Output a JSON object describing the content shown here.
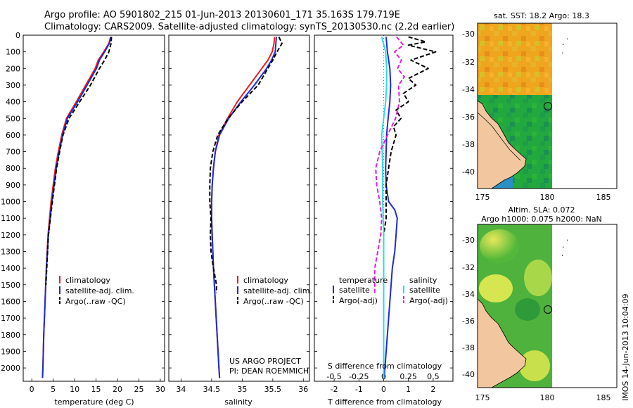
{
  "header": {
    "line1": "Argo profile: AO 5901802_215 01-Jun-2013 20130601_171 35.163S 179.719E",
    "line2": "Climatology: CARS2009. Satellite-adjusted climatology: synTS_20130530.nc (2.2d earlier)"
  },
  "colors": {
    "climatology": "#e8211d",
    "satellite": "#1e2bd6",
    "argo": "#000000",
    "sal_satellite": "#2fd9e6",
    "sal_argo": "#e020e0"
  },
  "depth_ticks": [
    "0",
    "100",
    "200",
    "300",
    "400",
    "500",
    "600",
    "700",
    "800",
    "900",
    "1000",
    "1100",
    "1200",
    "1300",
    "1400",
    "1500",
    "1600",
    "1700",
    "1800",
    "1900",
    "2000"
  ],
  "chart_data": [
    {
      "type": "line",
      "xlabel": "temperature (deg C)",
      "xticks": [
        "0",
        "5",
        "10",
        "15",
        "20",
        "25",
        "30"
      ],
      "xlim": [
        -2,
        31
      ],
      "ylim": [
        2080,
        0
      ],
      "legend": [
        "climatology",
        "satellite-adj. clim.",
        "Argo(..raw -QC)"
      ],
      "series": [
        {
          "name": "climatology",
          "color": "#e8211d",
          "depth": [
            10,
            50,
            100,
            150,
            200,
            300,
            400,
            500,
            600,
            700,
            800,
            1000,
            1200,
            1400,
            1600,
            1800,
            2000,
            2060
          ],
          "values": [
            18.4,
            18.0,
            16.8,
            15.5,
            14.8,
            12.6,
            10.4,
            8.1,
            7.0,
            6.2,
            5.5,
            4.5,
            3.8,
            3.4,
            3.1,
            2.8,
            2.6,
            2.5
          ]
        },
        {
          "name": "satellite-adj. clim.",
          "color": "#1e2bd6",
          "depth": [
            10,
            50,
            100,
            150,
            200,
            300,
            400,
            500,
            600,
            700,
            800,
            1000,
            1200,
            1400,
            1600,
            1800,
            2000,
            2060
          ],
          "values": [
            18.5,
            18.1,
            17.0,
            15.8,
            15.1,
            12.9,
            10.7,
            8.3,
            7.2,
            6.4,
            5.7,
            4.7,
            3.9,
            3.4,
            3.1,
            2.8,
            2.6,
            2.5
          ]
        },
        {
          "name": "Argo(..raw -QC)",
          "color": "#000000",
          "depth": [
            10,
            50,
            100,
            150,
            200,
            300,
            400,
            500,
            600,
            700,
            800,
            1000,
            1200,
            1400,
            1500
          ],
          "values": [
            18.6,
            18.5,
            18.0,
            17.0,
            15.8,
            13.7,
            11.2,
            8.7,
            7.3,
            6.5,
            5.8,
            4.8,
            3.9,
            3.5,
            3.3
          ]
        }
      ]
    },
    {
      "type": "line",
      "xlabel": "salinity",
      "xticks": [
        "34",
        "34.5",
        "35",
        "35.5",
        "36"
      ],
      "xlim": [
        33.8,
        36.1
      ],
      "ylim": [
        2080,
        0
      ],
      "legend": [
        "climatology",
        "satellite-adj. clim.",
        "Argo(..raw -QC)"
      ],
      "series": [
        {
          "name": "climatology",
          "color": "#e8211d",
          "depth": [
            10,
            50,
            100,
            150,
            200,
            300,
            400,
            500,
            600,
            700,
            800,
            900,
            1000,
            1100,
            1200,
            1400,
            1600,
            1800,
            2000,
            2060
          ],
          "values": [
            35.53,
            35.52,
            35.49,
            35.42,
            35.32,
            35.12,
            34.92,
            34.76,
            34.62,
            34.56,
            34.53,
            34.51,
            34.5,
            34.5,
            34.51,
            34.53,
            34.56,
            34.59,
            34.62,
            34.63
          ]
        },
        {
          "name": "satellite-adj. clim.",
          "color": "#1e2bd6",
          "depth": [
            10,
            50,
            100,
            150,
            200,
            300,
            400,
            500,
            600,
            700,
            800,
            900,
            1000,
            1100,
            1200,
            1400,
            1600,
            1800,
            2000,
            2060
          ],
          "values": [
            35.56,
            35.55,
            35.54,
            35.48,
            35.4,
            35.2,
            34.98,
            34.78,
            34.63,
            34.56,
            34.53,
            34.51,
            34.5,
            34.5,
            34.51,
            34.53,
            34.56,
            34.59,
            34.62,
            34.63
          ]
        },
        {
          "name": "Argo(..raw -QC)",
          "color": "#000000",
          "depth": [
            10,
            50,
            100,
            150,
            200,
            300,
            400,
            500,
            600,
            700,
            800,
            900,
            1000,
            1100,
            1200,
            1300,
            1400,
            1500,
            1550
          ],
          "values": [
            35.6,
            35.65,
            35.57,
            35.5,
            35.42,
            35.26,
            35.0,
            34.77,
            34.6,
            34.52,
            34.48,
            34.47,
            34.47,
            34.49,
            34.48,
            34.49,
            34.53,
            34.58,
            34.58
          ]
        }
      ]
    },
    {
      "type": "line",
      "xlabel": "T difference from climatology",
      "xlabel2": "S difference from climatology",
      "xticks": [
        "-2",
        "-1",
        "0",
        "1",
        "2"
      ],
      "xticks2": [
        "-0.5",
        "-0.25",
        "0",
        "0.25",
        "0.5"
      ],
      "xlim": [
        -2.8,
        2.8
      ],
      "ylim": [
        2080,
        0
      ],
      "legend_temperature_title": "temperature",
      "legend_salinity_title": "salinity",
      "legend": [
        "satellite",
        "Argo(-adj)",
        "satellite",
        "Argo(-adj)"
      ],
      "series": [
        {
          "name": "satellite",
          "color": "#1e2bd6",
          "depth": [
            10,
            100,
            200,
            300,
            400,
            500,
            600,
            700,
            800,
            900,
            1000,
            1050,
            1100,
            1200,
            1300,
            1400,
            1600,
            1800,
            2000,
            2060
          ],
          "values": [
            0.1,
            0.15,
            0.25,
            0.28,
            0.25,
            0.18,
            0.12,
            0.1,
            0.08,
            0.1,
            0.2,
            0.45,
            0.55,
            0.5,
            0.45,
            0.35,
            0.25,
            0.15,
            0.05,
            0.02
          ]
        },
        {
          "name": "Argo(-adj)",
          "color": "#000000",
          "depth": [
            10,
            40,
            60,
            100,
            150,
            200,
            260,
            300,
            350,
            400,
            450,
            500,
            550,
            600,
            700,
            800,
            900,
            1000,
            1100,
            1200,
            1300,
            1400,
            1500
          ],
          "values": [
            1.0,
            1.7,
            1.0,
            2.1,
            1.1,
            1.8,
            1.0,
            1.3,
            0.8,
            1.0,
            0.5,
            0.7,
            0.4,
            0.5,
            0.3,
            0.2,
            0.1,
            0.1,
            0.1,
            0.0,
            0.0,
            0.0,
            0.0
          ]
        },
        {
          "name": "satellite",
          "color": "#2fd9e6",
          "depth": [
            10,
            100,
            200,
            300,
            400,
            500,
            600,
            800,
            1000,
            1200,
            1400,
            1600,
            1800,
            2000,
            2060
          ],
          "values": [
            -0.02,
            0.02,
            0.03,
            0.03,
            0.02,
            0.0,
            -0.02,
            -0.01,
            -0.01,
            0.0,
            0.0,
            0.0,
            0.0,
            0.0,
            0.0
          ]
        },
        {
          "name": "Argo(-adj)",
          "color": "#e020e0",
          "depth": [
            10,
            60,
            100,
            150,
            200,
            250,
            300,
            400,
            500,
            600,
            700,
            800,
            900,
            1000,
            1100,
            1200,
            1300,
            1400,
            1500,
            1550
          ],
          "values": [
            0.13,
            0.2,
            0.11,
            0.18,
            0.14,
            0.21,
            0.15,
            0.16,
            0.12,
            0.04,
            -0.04,
            -0.08,
            -0.07,
            -0.04,
            -0.02,
            -0.03,
            -0.06,
            -0.09,
            -0.09,
            -0.09
          ]
        }
      ]
    },
    {
      "type": "heatmap",
      "title": "sat. SST: 18.2 Argo: 18.3",
      "xticks": [
        "175",
        "180",
        "185"
      ],
      "yticks": [
        "-30",
        "-32",
        "-34",
        "-36",
        "-38",
        "-40"
      ],
      "xlim": [
        173.5,
        186.5
      ],
      "ylim": [
        -41.2,
        -29.3
      ],
      "marker": {
        "lon": 179.719,
        "lat": -35.163
      }
    },
    {
      "type": "heatmap",
      "title": "Altim. SLA: 0.072",
      "subtitle": "Argo h1000: 0.075 h2000: NaN",
      "xticks": [
        "175",
        "180",
        "185"
      ],
      "yticks": [
        "-30",
        "-32",
        "-34",
        "-36",
        "-38",
        "-40"
      ],
      "xlim": [
        173.5,
        186.5
      ],
      "ylim": [
        -41.2,
        -29.3
      ],
      "marker": {
        "lon": 179.719,
        "lat": -35.163
      }
    }
  ],
  "us_argo": {
    "line1": "US ARGO PROJECT",
    "line2": "PI: DEAN ROEMMICH"
  },
  "imos_stamp": "IMOS 14-Jun-2013 10:04:09"
}
